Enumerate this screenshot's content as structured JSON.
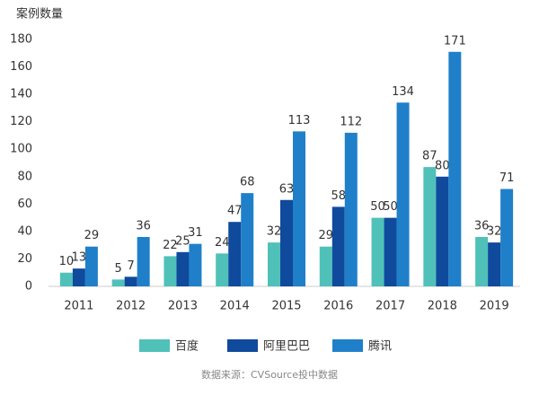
{
  "chart_data": {
    "type": "bar",
    "y_label": "案例数量",
    "categories": [
      "2011",
      "2012",
      "2013",
      "2014",
      "2015",
      "2016",
      "2017",
      "2018",
      "2019"
    ],
    "series": [
      {
        "name": "百度",
        "color": "#4fc1b9",
        "values": [
          10,
          5,
          22,
          24,
          32,
          29,
          50,
          87,
          36
        ]
      },
      {
        "name": "阿里巴巴",
        "color": "#0f4a9c",
        "values": [
          13,
          7,
          25,
          47,
          63,
          58,
          50,
          80,
          32
        ]
      },
      {
        "name": "腾讯",
        "color": "#1f80c9",
        "values": [
          29,
          36,
          31,
          68,
          113,
          112,
          134,
          171,
          71
        ]
      }
    ],
    "ylim": [
      0,
      180
    ],
    "yticks": [
      0,
      20,
      40,
      60,
      80,
      100,
      120,
      140,
      160,
      180
    ],
    "grid": false,
    "legend": "bottom",
    "source": "数据来源：CVSource投中数据"
  }
}
